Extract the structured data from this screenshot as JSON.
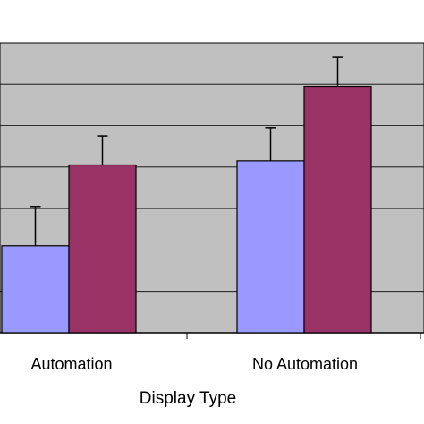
{
  "chart_data": {
    "type": "bar",
    "title": "",
    "xlabel": "Display Type",
    "ylabel": "",
    "categories": [
      "Automation",
      "No Automation"
    ],
    "series": [
      {
        "values": [
          2.1,
          4.15
        ],
        "errors": [
          0.95,
          0.8
        ],
        "color": "#9999ff"
      },
      {
        "values": [
          4.05,
          5.95
        ],
        "errors": [
          0.7,
          0.7
        ],
        "color": "#993366"
      }
    ],
    "ylim": [
      0,
      7
    ],
    "grid": true,
    "legend": "none",
    "plot_background": "#c0c0c0"
  }
}
